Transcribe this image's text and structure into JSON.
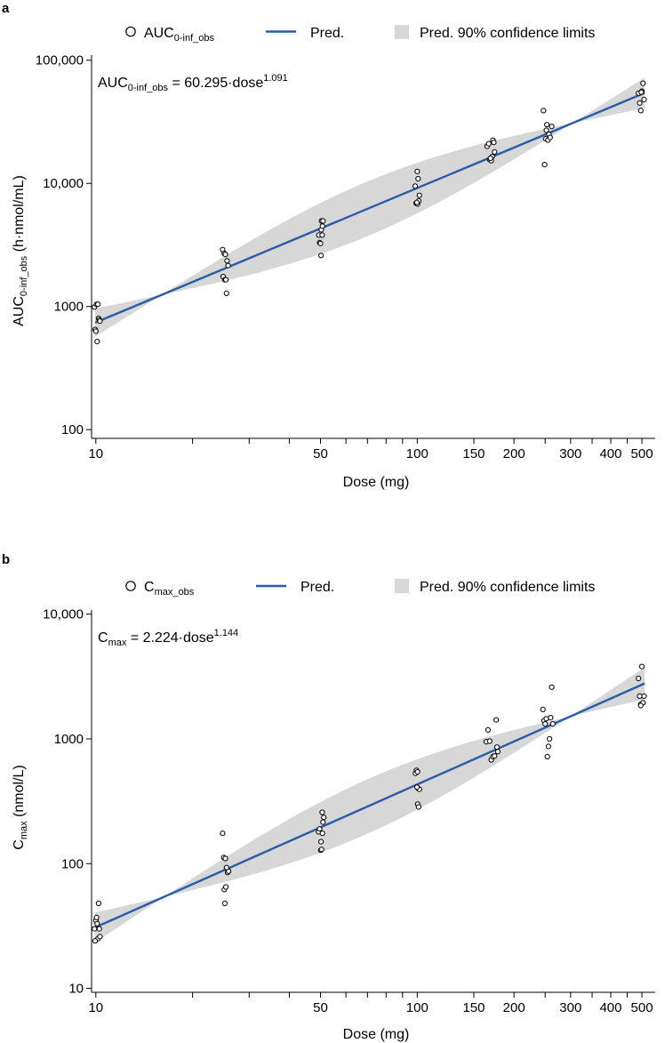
{
  "colors": {
    "line": "#2a5ba8",
    "band": "#d0d0d0",
    "points": "#000000"
  },
  "chart_data": [
    {
      "panel_letter": "a",
      "type": "scatter",
      "x_scale": "log",
      "y_scale": "log",
      "xlabel": "Dose (mg)",
      "ylabel_main": "AUC",
      "ylabel_sub": "0-inf_obs",
      "ylabel_unit": " (h·nmol/mL)",
      "x_ticks": [
        10,
        50,
        100,
        150,
        200,
        300,
        400,
        500
      ],
      "x_tick_labels": [
        "10",
        "50",
        "100",
        "150",
        "200",
        "300",
        "400",
        "500"
      ],
      "x_minor_ticks": [
        20,
        30,
        40,
        60,
        70,
        80,
        90,
        250,
        350,
        450
      ],
      "y_ticks": [
        100,
        1000,
        10000,
        100000
      ],
      "y_tick_labels": [
        "100",
        "1000",
        "10,000",
        "100,000"
      ],
      "xlim": [
        9.7,
        550
      ],
      "ylim": [
        85,
        110000
      ],
      "legend": {
        "obs_main": "AUC",
        "obs_sub": "0-inf_obs",
        "pred": "Pred.",
        "ci": "Pred. 90% confidence limits"
      },
      "equation": {
        "main": "AUC",
        "sub": "0-inf_obs",
        "text": " =  60.295·dose",
        "sup": "1.091"
      },
      "fit": {
        "coef": 60.295,
        "exponent": 1.091,
        "ci_factor": 1.09
      },
      "points": [
        [
          9.9,
          990
        ],
        [
          10.05,
          1040
        ],
        [
          10.15,
          1045
        ],
        [
          9.95,
          650
        ],
        [
          10.0,
          630
        ],
        [
          10.1,
          520
        ],
        [
          10.2,
          800
        ],
        [
          10.25,
          780
        ],
        [
          10.3,
          760
        ],
        [
          24.8,
          2900
        ],
        [
          25.1,
          2700
        ],
        [
          25.3,
          2650
        ],
        [
          24.9,
          1750
        ],
        [
          25.2,
          1650
        ],
        [
          25.4,
          1650
        ],
        [
          25.6,
          2350
        ],
        [
          25.8,
          2150
        ],
        [
          25.5,
          1280
        ],
        [
          49.4,
          3800
        ],
        [
          49.7,
          3300
        ],
        [
          50.0,
          3250
        ],
        [
          50.3,
          4200
        ],
        [
          50.6,
          3800
        ],
        [
          50.4,
          4950
        ],
        [
          50.9,
          4950
        ],
        [
          50.2,
          2600
        ],
        [
          50.7,
          4500
        ],
        [
          98.5,
          9500
        ],
        [
          99.2,
          6900
        ],
        [
          100.2,
          6800
        ],
        [
          100.6,
          10900
        ],
        [
          101.0,
          7200
        ],
        [
          100.0,
          12500
        ],
        [
          101.5,
          8000
        ],
        [
          99.7,
          7000
        ],
        [
          165,
          20000
        ],
        [
          167,
          21000
        ],
        [
          168,
          15600
        ],
        [
          170,
          15300
        ],
        [
          172,
          22400
        ],
        [
          174,
          18000
        ],
        [
          171,
          16500
        ],
        [
          169,
          16000
        ],
        [
          173,
          21500
        ],
        [
          247,
          39000
        ],
        [
          249,
          14200
        ],
        [
          251,
          23000
        ],
        [
          253,
          30000
        ],
        [
          255,
          22500
        ],
        [
          257,
          25000
        ],
        [
          259,
          23600
        ],
        [
          262,
          29000
        ],
        [
          252,
          27000
        ],
        [
          488,
          54000
        ],
        [
          492,
          45000
        ],
        [
          496,
          39000
        ],
        [
          500,
          56000
        ],
        [
          504,
          65000
        ],
        [
          508,
          48000
        ],
        [
          498,
          55000
        ]
      ]
    },
    {
      "panel_letter": "b",
      "type": "scatter",
      "x_scale": "log",
      "y_scale": "log",
      "xlabel": "Dose (mg)",
      "ylabel_main": "C",
      "ylabel_sub": "max",
      "ylabel_unit": " (nmol/L)",
      "x_ticks": [
        10,
        50,
        100,
        150,
        200,
        300,
        400,
        500
      ],
      "x_tick_labels": [
        "10",
        "50",
        "100",
        "150",
        "200",
        "300",
        "400",
        "500"
      ],
      "x_minor_ticks": [
        20,
        30,
        40,
        60,
        70,
        80,
        90,
        250,
        350,
        450
      ],
      "y_ticks": [
        10,
        100,
        1000,
        10000
      ],
      "y_tick_labels": [
        "10",
        "100",
        "1000",
        "10,000"
      ],
      "xlim": [
        9.7,
        550
      ],
      "ylim": [
        9.3,
        10800
      ],
      "legend": {
        "obs_main": "C",
        "obs_sub": "max_obs",
        "pred": "Pred.",
        "ci": "Pred. 90% confidence limits"
      },
      "equation": {
        "main": "C",
        "sub": "max",
        "text": " = 2.224·dose",
        "sup": "1.144"
      },
      "fit": {
        "coef": 2.224,
        "exponent": 1.144,
        "ci_factor": 1.1
      },
      "points": [
        [
          9.9,
          30
        ],
        [
          10.0,
          35
        ],
        [
          10.05,
          37
        ],
        [
          10.1,
          33
        ],
        [
          10.2,
          48
        ],
        [
          10.15,
          25
        ],
        [
          9.95,
          24
        ],
        [
          10.3,
          26
        ],
        [
          10.25,
          30
        ],
        [
          24.8,
          175
        ],
        [
          25.0,
          112
        ],
        [
          25.3,
          110
        ],
        [
          25.1,
          62
        ],
        [
          25.4,
          65
        ],
        [
          25.2,
          48
        ],
        [
          25.7,
          85
        ],
        [
          25.9,
          87
        ],
        [
          25.5,
          93
        ],
        [
          49.3,
          180
        ],
        [
          49.7,
          190
        ],
        [
          50.1,
          128
        ],
        [
          50.4,
          130
        ],
        [
          50.7,
          175
        ],
        [
          50.9,
          215
        ],
        [
          51.2,
          235
        ],
        [
          50.6,
          258
        ],
        [
          50.2,
          150
        ],
        [
          98.7,
          530
        ],
        [
          99.4,
          560
        ],
        [
          100.2,
          545
        ],
        [
          100.8,
          400
        ],
        [
          101.5,
          395
        ],
        [
          100.3,
          300
        ],
        [
          101.0,
          285
        ],
        [
          99.8,
          410
        ],
        [
          164,
          950
        ],
        [
          166,
          1180
        ],
        [
          168,
          960
        ],
        [
          170,
          680
        ],
        [
          172,
          720
        ],
        [
          174,
          730
        ],
        [
          176,
          1420
        ],
        [
          178,
          790
        ],
        [
          177,
          860
        ],
        [
          246,
          1720
        ],
        [
          248,
          1400
        ],
        [
          250,
          1320
        ],
        [
          252,
          1450
        ],
        [
          254,
          720
        ],
        [
          256,
          870
        ],
        [
          258,
          1000
        ],
        [
          260,
          1480
        ],
        [
          262,
          2600
        ],
        [
          264,
          1320
        ],
        [
          488,
          3050
        ],
        [
          492,
          2200
        ],
        [
          496,
          1900
        ],
        [
          500,
          3800
        ],
        [
          504,
          1950
        ],
        [
          508,
          2200
        ],
        [
          496,
          1850
        ]
      ]
    }
  ]
}
